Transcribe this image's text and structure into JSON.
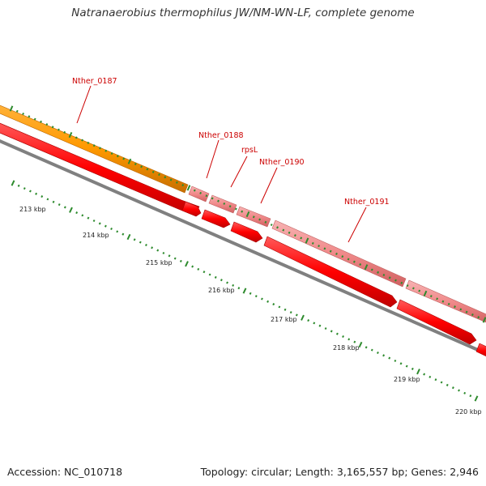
{
  "title": "Natranaerobius thermophilus JW/NM-WN-LF, complete genome",
  "footer": {
    "accession": "Accession: NC_010718",
    "summary": "Topology: circular; Length: 3,165,557 bp; Genes: 2,946"
  },
  "colors": {
    "orange_feature": "#ff9900",
    "pink_feature": "#f08080",
    "red_feature": "#ff0000",
    "backbone": "#808080",
    "tick": "#2e8b2e",
    "label": "#cc0000"
  },
  "gene_labels": [
    "Nther_0187",
    "Nther_0188",
    "rpsL",
    "Nther_0190",
    "Nther_0191"
  ],
  "scale_labels": [
    "213 kbp",
    "214 kbp",
    "215 kbp",
    "216 kbp",
    "217 kbp",
    "218 kbp",
    "219 kbp",
    "220 kbp"
  ]
}
